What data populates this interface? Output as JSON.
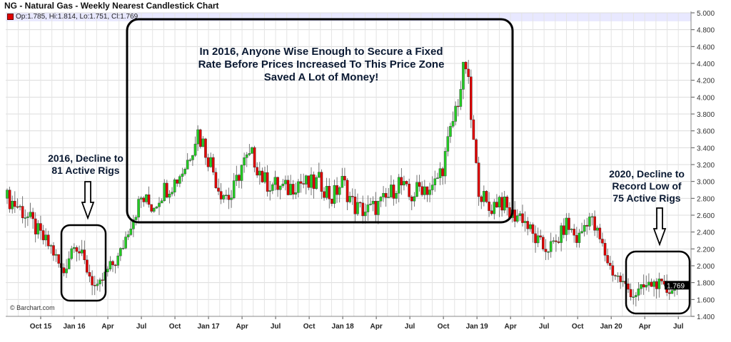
{
  "header": {
    "title": "NG - Natural Gas - Weekly Nearest Candlestick Chart",
    "ohlc": "Op:1.785, Hi:1.814, Lo:1.751, Cl:1.769",
    "credit": "© Barchart.com"
  },
  "annotations": {
    "main": [
      "In 2016, Anyone Wise Enough to Secure a Fixed",
      "Rate Before Prices Increased To This Price Zone",
      "Saved A Lot of Money!"
    ],
    "left": [
      "2016, Decline to",
      "81 Active Rigs"
    ],
    "right": [
      "2020, Decline to",
      "Record Low of",
      "75 Active Rigs"
    ]
  },
  "colors": {
    "up": "#22cc22",
    "down": "#e00000",
    "last_price_bg": "#000000",
    "top_band": "#e8e8ff"
  },
  "chart_data": {
    "type": "candlestick",
    "title": "NG - Natural Gas - Weekly Nearest Candlestick Chart",
    "ylim": [
      1.4,
      5.0
    ],
    "y_ticks": [
      "1.400",
      "1.600",
      "1.800",
      "2.000",
      "2.200",
      "2.400",
      "2.600",
      "2.800",
      "3.000",
      "3.200",
      "3.400",
      "3.600",
      "3.800",
      "4.000",
      "4.200",
      "4.400",
      "4.600",
      "4.800",
      "5.000"
    ],
    "x_ticks": [
      "Oct 15",
      "Jan 16",
      "Apr",
      "Jul",
      "Oct",
      "Jan 17",
      "Apr",
      "Jul",
      "Oct",
      "Jan 18",
      "Apr",
      "Jul",
      "Oct",
      "Jan 19",
      "Apr",
      "Jul",
      "Oct",
      "Jan 20",
      "Apr",
      "Jul"
    ],
    "last_price": "1.769",
    "grid": true,
    "months": [
      "2015-07",
      "2015-08",
      "2015-09",
      "2015-10",
      "2015-11",
      "2015-12",
      "2016-01",
      "2016-02",
      "2016-03",
      "2016-04",
      "2016-05",
      "2016-06",
      "2016-07",
      "2016-08",
      "2016-09",
      "2016-10",
      "2016-11",
      "2016-12",
      "2017-01",
      "2017-02",
      "2017-03",
      "2017-04",
      "2017-05",
      "2017-06",
      "2017-07",
      "2017-08",
      "2017-09",
      "2017-10",
      "2017-11",
      "2017-12",
      "2018-01",
      "2018-02",
      "2018-03",
      "2018-04",
      "2018-05",
      "2018-06",
      "2018-07",
      "2018-08",
      "2018-09",
      "2018-10",
      "2018-11",
      "2018-12",
      "2019-01",
      "2019-02",
      "2019-03",
      "2019-04",
      "2019-05",
      "2019-06",
      "2019-07",
      "2019-08",
      "2019-09",
      "2019-10",
      "2019-11",
      "2019-12",
      "2020-01",
      "2020-02",
      "2020-03",
      "2020-04",
      "2020-05",
      "2020-06",
      "2020-07"
    ],
    "approx_close": [
      2.8,
      2.7,
      2.55,
      2.35,
      2.2,
      1.9,
      2.3,
      2.0,
      1.7,
      1.95,
      2.1,
      2.5,
      2.8,
      2.7,
      2.9,
      3.0,
      3.2,
      3.6,
      3.3,
      2.9,
      2.8,
      3.2,
      3.3,
      3.0,
      2.95,
      2.9,
      3.0,
      2.95,
      3.0,
      2.8,
      3.0,
      2.7,
      2.65,
      2.7,
      2.8,
      3.0,
      2.8,
      2.95,
      2.9,
      3.2,
      3.8,
      4.4,
      3.0,
      2.65,
      2.8,
      2.6,
      2.6,
      2.35,
      2.2,
      2.25,
      2.5,
      2.3,
      2.6,
      2.3,
      1.95,
      1.8,
      1.65,
      1.75,
      1.8,
      1.7,
      1.769
    ]
  }
}
